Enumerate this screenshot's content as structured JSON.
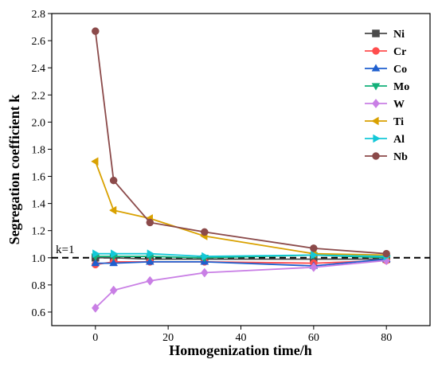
{
  "chart_data": {
    "type": "line",
    "xlabel": "Homogenization time/h",
    "ylabel": "Segregation coefficient k",
    "xlim": [
      -12,
      92
    ],
    "ylim": [
      0.5,
      2.8
    ],
    "xticks": [
      0,
      20,
      40,
      60,
      80
    ],
    "yticks": [
      0.6,
      0.8,
      1.0,
      1.2,
      1.4,
      1.6,
      1.8,
      2.0,
      2.2,
      2.4,
      2.6,
      2.8
    ],
    "x": [
      0,
      5,
      15,
      30,
      60,
      80
    ],
    "legend_position": "top-right",
    "reference_line": {
      "y": 1.0,
      "label": "k=1",
      "style": "dashed"
    },
    "series": [
      {
        "name": "Ni",
        "color": "#4a4a4a",
        "marker": "square",
        "values": [
          1.0,
          1.0,
          0.99,
          0.99,
          0.99,
          0.99
        ]
      },
      {
        "name": "Cr",
        "color": "#ff4d4d",
        "marker": "circle",
        "values": [
          0.95,
          0.97,
          0.97,
          0.97,
          0.96,
          0.98
        ]
      },
      {
        "name": "Co",
        "color": "#1f5fcf",
        "marker": "triangle-up",
        "values": [
          0.96,
          0.96,
          0.97,
          0.97,
          0.94,
          0.99
        ]
      },
      {
        "name": "Mo",
        "color": "#13b07a",
        "marker": "triangle-down",
        "values": [
          1.01,
          1.01,
          1.01,
          1.0,
          1.02,
          1.0
        ]
      },
      {
        "name": "W",
        "color": "#c97fe5",
        "marker": "diamond",
        "values": [
          0.63,
          0.76,
          0.83,
          0.89,
          0.93,
          0.98
        ]
      },
      {
        "name": "Ti",
        "color": "#d9a100",
        "marker": "triangle-left",
        "values": [
          1.71,
          1.35,
          1.29,
          1.16,
          1.03,
          1.02
        ]
      },
      {
        "name": "Al",
        "color": "#14c8d8",
        "marker": "triangle-right",
        "values": [
          1.03,
          1.03,
          1.03,
          1.01,
          1.02,
          1.01
        ]
      },
      {
        "name": "Nb",
        "color": "#8b4a4a",
        "marker": "circle",
        "values": [
          2.67,
          1.57,
          1.26,
          1.19,
          1.07,
          1.03
        ]
      }
    ]
  }
}
